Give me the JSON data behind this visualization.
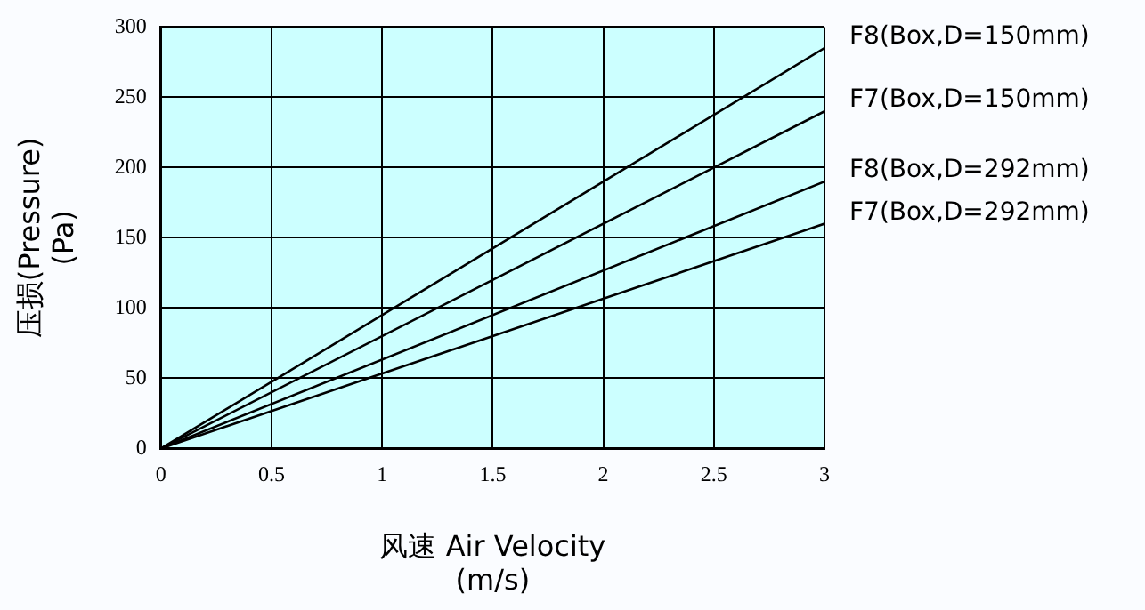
{
  "chart_data": {
    "type": "line",
    "xlabel": "风速 Air Velocity\n(m/s)",
    "ylabel": "压损(Pressure)\n(Pa)",
    "x": [
      0,
      3
    ],
    "series": [
      {
        "name": "F8(Box,D=150mm)",
        "color": "#000000",
        "values": [
          0,
          285
        ]
      },
      {
        "name": "F7(Box,D=150mm)",
        "color": "#000000",
        "values": [
          0,
          240
        ]
      },
      {
        "name": "F8(Box,D=292mm)",
        "color": "#000000",
        "values": [
          0,
          190
        ]
      },
      {
        "name": "F7(Box,D=292mm)",
        "color": "#000000",
        "values": [
          0,
          160
        ]
      }
    ],
    "xlim": [
      0,
      3
    ],
    "xticks": [
      0,
      0.5,
      1,
      1.5,
      2,
      2.5,
      3
    ],
    "ylim": [
      0,
      300
    ],
    "yticks": [
      0,
      50,
      100,
      150,
      200,
      250,
      300
    ],
    "grid": true,
    "legend": false,
    "marker": "none",
    "line_style": "solid"
  }
}
